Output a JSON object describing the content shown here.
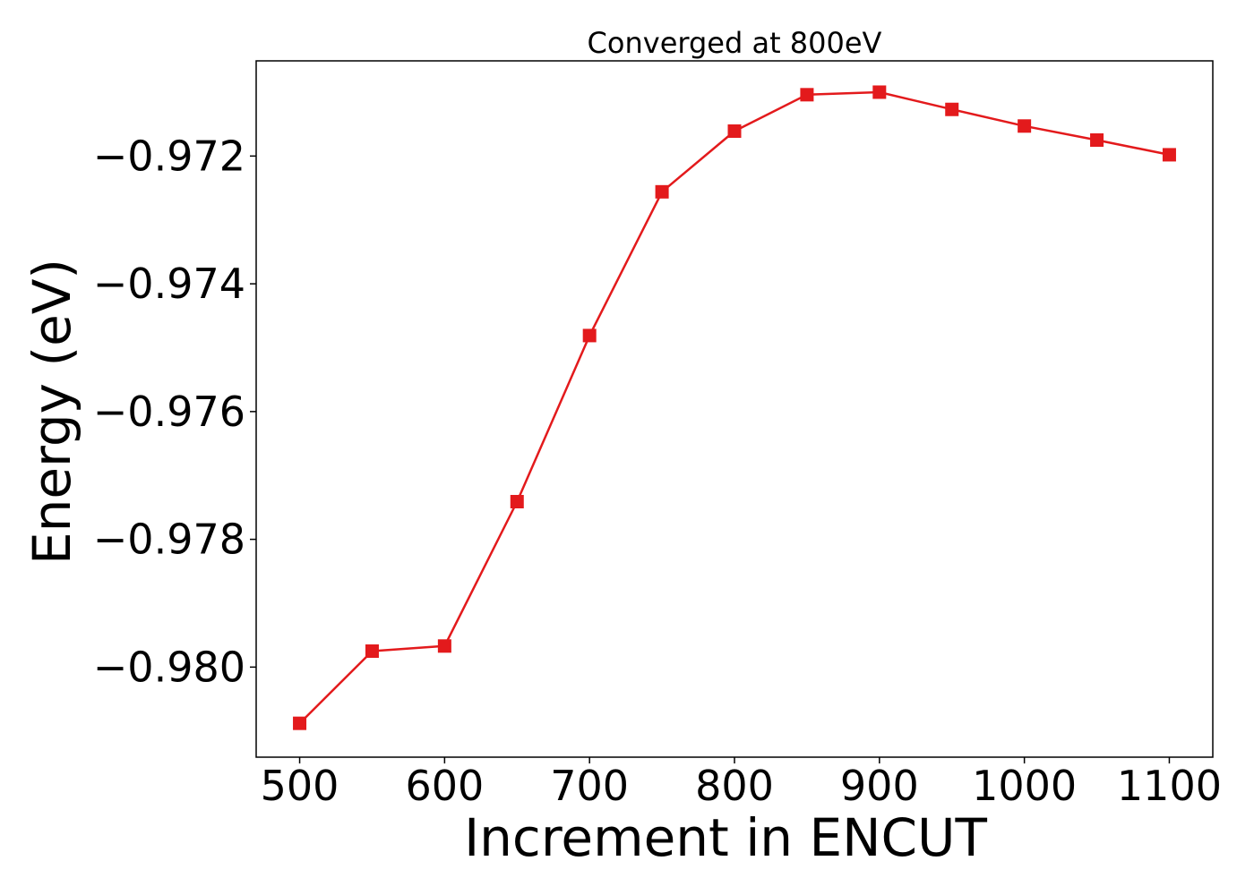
{
  "chart_data": {
    "type": "line",
    "title": "Converged at 800eV",
    "xlabel": "Increment in ENCUT",
    "ylabel": "Energy (eV)",
    "x": [
      500,
      550,
      600,
      650,
      700,
      750,
      800,
      850,
      900,
      950,
      1000,
      1050,
      1100
    ],
    "series": [
      {
        "values": [
          -0.98088,
          -0.97975,
          -0.97967,
          -0.97741,
          -0.97481,
          -0.97256,
          -0.97161,
          -0.97104,
          -0.971,
          -0.97127,
          -0.97153,
          -0.97175,
          -0.97198
        ],
        "color": "#e31a1c",
        "marker": "square"
      }
    ],
    "xticks": [
      500,
      600,
      700,
      800,
      900,
      1000,
      1100
    ],
    "xtick_labels": [
      "500",
      "600",
      "700",
      "800",
      "900",
      "1000",
      "1100"
    ],
    "yticks": [
      -0.972,
      -0.974,
      -0.976,
      -0.978,
      -0.98
    ],
    "ytick_labels": [
      "−0.972",
      "−0.974",
      "−0.976",
      "−0.978",
      "−0.980"
    ],
    "xlim": [
      470,
      1130
    ],
    "ylim": [
      -0.98141,
      -0.97051
    ],
    "grid": false,
    "legend": "none"
  }
}
